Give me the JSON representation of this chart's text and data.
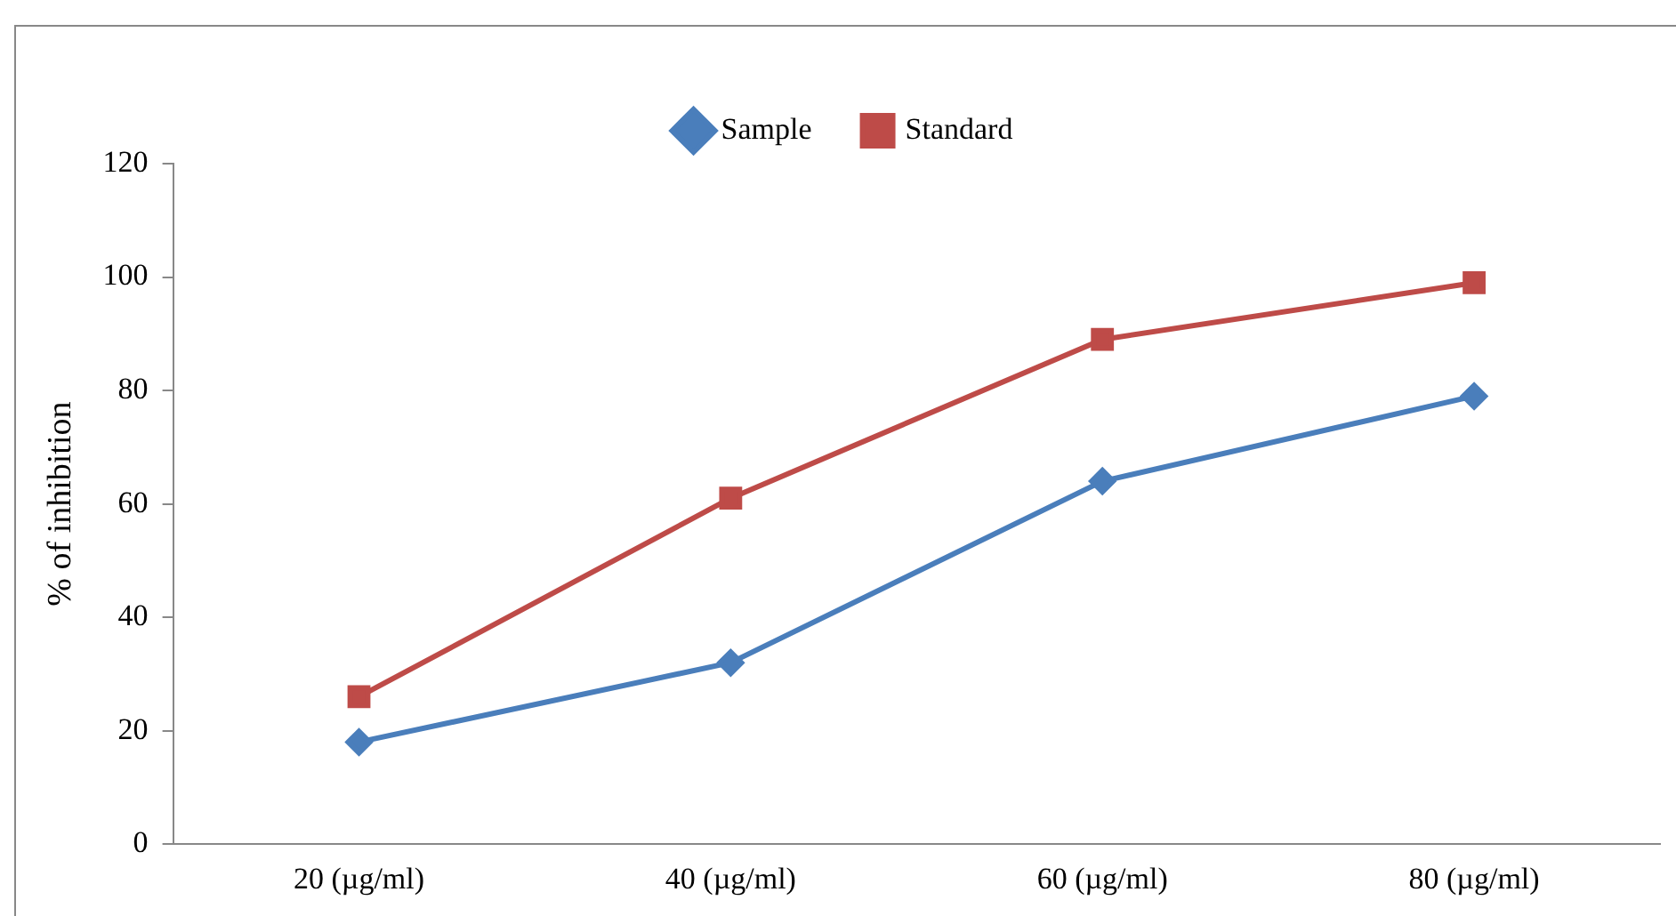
{
  "chart_data": {
    "type": "line",
    "ylabel": "% of inhibition",
    "categories": [
      "20 (µg/ml)",
      "40 (µg/ml)",
      "60 (µg/ml)",
      "80 (µg/ml)"
    ],
    "series": [
      {
        "name": "Sample",
        "color": "#4a7ebb",
        "marker": "diamond",
        "values": [
          18,
          32,
          64,
          79
        ]
      },
      {
        "name": "Standard",
        "color": "#be4b48",
        "marker": "square",
        "values": [
          26,
          61,
          89,
          99
        ]
      }
    ],
    "ylim": [
      0,
      120
    ],
    "yticks": [
      0,
      20,
      40,
      60,
      80,
      100,
      120
    ],
    "grid": false,
    "legend": "top",
    "line_style": "solid"
  }
}
